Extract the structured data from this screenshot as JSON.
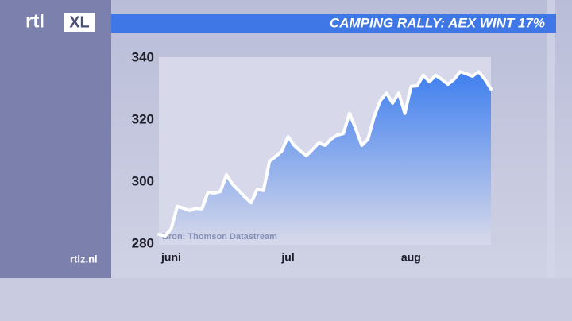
{
  "header": {
    "logo": "rtl",
    "logo_badge": "XL",
    "site": "rtlz.nl"
  },
  "chart_data": {
    "type": "area",
    "title": "CAMPING RALLY: AEX WINT 17%",
    "source": "Bron: Thomson Datastream",
    "categories": [
      null,
      null,
      "juni",
      null,
      null,
      null,
      null,
      null,
      null,
      null,
      null,
      null,
      null,
      null,
      null,
      null,
      null,
      null,
      null,
      null,
      null,
      "jul",
      null,
      null,
      null,
      null,
      null,
      null,
      null,
      null,
      null,
      null,
      null,
      null,
      null,
      null,
      null,
      null,
      null,
      null,
      null,
      "aug",
      null,
      null,
      null,
      null,
      null,
      null,
      null,
      null,
      null,
      null,
      null,
      null,
      null
    ],
    "values": [
      283.1,
      282.6,
      284.9,
      292.1,
      291.5,
      290.8,
      291.5,
      291.3,
      296.7,
      296.4,
      296.9,
      302.3,
      299.2,
      297.2,
      295.1,
      293.3,
      297.7,
      297.2,
      306.7,
      308.2,
      310.0,
      314.6,
      311.8,
      310.0,
      308.5,
      310.5,
      312.6,
      311.8,
      313.8,
      315.1,
      315.6,
      322.1,
      317.2,
      311.8,
      313.8,
      321.0,
      326.2,
      328.7,
      325.4,
      328.7,
      322.1,
      330.8,
      331.0,
      334.4,
      332.3,
      334.4,
      333.1,
      331.5,
      333.1,
      335.6,
      334.9,
      334.1,
      335.6,
      333.1,
      330.0
    ],
    "color": "#ffffff",
    "area_color": "#3f7fef",
    "ylim": [
      280,
      340
    ],
    "yticks": [
      280,
      300,
      320,
      340
    ]
  }
}
